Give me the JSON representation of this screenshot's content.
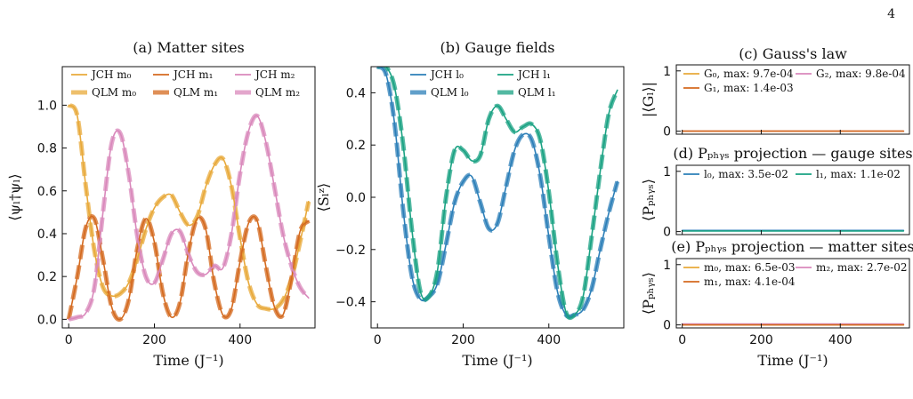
{
  "page": {
    "number": "4"
  },
  "colors": {
    "m0": "#e8a93a",
    "m1": "#d46a1f",
    "m2": "#d988bb",
    "l0": "#2c7fb8",
    "l1": "#1aa283"
  },
  "chart_data": [
    {
      "id": "a",
      "type": "line",
      "title": "(a) Matter sites",
      "xlabel": "Time (J⁻¹)",
      "ylabel": "⟨ψₗ†ψₗ⟩",
      "xlim": [
        -15,
        575
      ],
      "ylim": [
        -0.04,
        1.18
      ],
      "xticks": [
        0,
        200,
        400
      ],
      "yticks": [
        0.0,
        0.2,
        0.4,
        0.6,
        0.8,
        1.0
      ],
      "ytick_labels": [
        "0.0",
        "0.2",
        "0.4",
        "0.6",
        "0.8",
        "1.0"
      ],
      "legend": {
        "position": "top",
        "columns": 3,
        "entries": [
          "JCH m₀",
          "JCH m₁",
          "JCH m₂",
          "QLM m₀",
          "QLM m₁",
          "QLM m₂"
        ]
      },
      "x": [
        0,
        20,
        40,
        60,
        80,
        100,
        120,
        140,
        160,
        180,
        200,
        220,
        240,
        260,
        280,
        300,
        320,
        340,
        360,
        380,
        400,
        420,
        440,
        460,
        480,
        500,
        520,
        540,
        560
      ],
      "series": [
        {
          "name": "JCH m₀",
          "color": "#e8a93a",
          "style": "solid",
          "values": [
            1.0,
            0.95,
            0.62,
            0.32,
            0.15,
            0.11,
            0.12,
            0.17,
            0.28,
            0.42,
            0.52,
            0.57,
            0.58,
            0.5,
            0.44,
            0.48,
            0.62,
            0.72,
            0.75,
            0.62,
            0.38,
            0.17,
            0.07,
            0.05,
            0.05,
            0.09,
            0.19,
            0.36,
            0.55
          ]
        },
        {
          "name": "JCH m₁",
          "color": "#d46a1f",
          "style": "solid",
          "values": [
            0.0,
            0.2,
            0.43,
            0.47,
            0.28,
            0.06,
            0.0,
            0.09,
            0.33,
            0.47,
            0.36,
            0.12,
            0.01,
            0.08,
            0.32,
            0.47,
            0.42,
            0.17,
            0.02,
            0.05,
            0.27,
            0.45,
            0.46,
            0.25,
            0.06,
            0.02,
            0.19,
            0.41,
            0.46
          ]
        },
        {
          "name": "JCH m₂",
          "color": "#d988bb",
          "style": "solid",
          "values": [
            0.0,
            0.01,
            0.03,
            0.15,
            0.5,
            0.82,
            0.87,
            0.68,
            0.39,
            0.2,
            0.17,
            0.28,
            0.4,
            0.41,
            0.3,
            0.22,
            0.21,
            0.25,
            0.24,
            0.4,
            0.68,
            0.88,
            0.95,
            0.83,
            0.62,
            0.4,
            0.25,
            0.15,
            0.1
          ]
        },
        {
          "name": "QLM m₀",
          "color": "#e8a93a",
          "style": "dashed",
          "values": [
            1.0,
            0.95,
            0.62,
            0.32,
            0.15,
            0.11,
            0.12,
            0.17,
            0.28,
            0.42,
            0.52,
            0.57,
            0.58,
            0.5,
            0.44,
            0.48,
            0.62,
            0.72,
            0.75,
            0.62,
            0.38,
            0.17,
            0.07,
            0.05,
            0.05,
            0.09,
            0.19,
            0.36,
            0.55
          ]
        },
        {
          "name": "QLM m₁",
          "color": "#d46a1f",
          "style": "dashed",
          "values": [
            0.0,
            0.2,
            0.43,
            0.47,
            0.28,
            0.06,
            0.0,
            0.09,
            0.33,
            0.47,
            0.36,
            0.12,
            0.01,
            0.08,
            0.32,
            0.47,
            0.42,
            0.17,
            0.02,
            0.05,
            0.27,
            0.45,
            0.46,
            0.25,
            0.06,
            0.02,
            0.19,
            0.41,
            0.46
          ]
        },
        {
          "name": "QLM m₂",
          "color": "#d988bb",
          "style": "dashed",
          "values": [
            0.0,
            0.01,
            0.03,
            0.15,
            0.5,
            0.82,
            0.87,
            0.68,
            0.39,
            0.2,
            0.17,
            0.28,
            0.4,
            0.41,
            0.3,
            0.22,
            0.21,
            0.25,
            0.24,
            0.4,
            0.68,
            0.88,
            0.95,
            0.83,
            0.62,
            0.4,
            0.25,
            0.15,
            0.1
          ]
        }
      ]
    },
    {
      "id": "b",
      "type": "line",
      "title": "(b) Gauge fields",
      "xlabel": "Time (J⁻¹)",
      "ylabel": "⟨Sₗᶻ⟩",
      "xlim": [
        -15,
        575
      ],
      "ylim": [
        -0.5,
        0.5
      ],
      "xticks": [
        0,
        200,
        400
      ],
      "yticks": [
        -0.4,
        -0.2,
        0.0,
        0.2,
        0.4
      ],
      "ytick_labels": [
        "−0.4",
        "−0.2",
        "0.0",
        "0.2",
        "0.4"
      ],
      "legend": {
        "position": "top",
        "columns": 2,
        "entries": [
          "JCH l₀",
          "JCH l₁",
          "QLM l₀",
          "QLM l₁"
        ]
      },
      "x": [
        0,
        20,
        40,
        60,
        80,
        100,
        120,
        140,
        160,
        180,
        200,
        220,
        240,
        260,
        280,
        300,
        320,
        340,
        360,
        380,
        400,
        420,
        440,
        460,
        480,
        500,
        520,
        540,
        560
      ],
      "series": [
        {
          "name": "JCH l₀",
          "color": "#2c7fb8",
          "style": "solid",
          "values": [
            0.5,
            0.47,
            0.28,
            -0.05,
            -0.3,
            -0.39,
            -0.38,
            -0.33,
            -0.18,
            -0.02,
            0.06,
            0.08,
            -0.02,
            -0.12,
            -0.1,
            0.04,
            0.18,
            0.24,
            0.22,
            0.08,
            -0.15,
            -0.36,
            -0.45,
            -0.45,
            -0.43,
            -0.35,
            -0.2,
            -0.06,
            0.06
          ]
        },
        {
          "name": "JCH l₁",
          "color": "#1aa283",
          "style": "solid",
          "values": [
            0.5,
            0.5,
            0.42,
            0.2,
            -0.12,
            -0.36,
            -0.38,
            -0.28,
            0.0,
            0.18,
            0.18,
            0.14,
            0.16,
            0.3,
            0.35,
            0.3,
            0.25,
            0.27,
            0.28,
            0.22,
            0.02,
            -0.25,
            -0.44,
            -0.45,
            -0.38,
            -0.15,
            0.1,
            0.32,
            0.41
          ]
        },
        {
          "name": "QLM l₀",
          "color": "#2c7fb8",
          "style": "dashed",
          "values": [
            0.5,
            0.47,
            0.28,
            -0.05,
            -0.3,
            -0.39,
            -0.38,
            -0.33,
            -0.18,
            -0.02,
            0.06,
            0.08,
            -0.02,
            -0.12,
            -0.1,
            0.04,
            0.18,
            0.24,
            0.22,
            0.08,
            -0.15,
            -0.36,
            -0.45,
            -0.45,
            -0.43,
            -0.35,
            -0.2,
            -0.06,
            0.06
          ]
        },
        {
          "name": "QLM l₁",
          "color": "#1aa283",
          "style": "dashed",
          "values": [
            0.5,
            0.5,
            0.42,
            0.2,
            -0.12,
            -0.36,
            -0.38,
            -0.28,
            0.0,
            0.18,
            0.18,
            0.14,
            0.16,
            0.3,
            0.35,
            0.3,
            0.25,
            0.27,
            0.28,
            0.22,
            0.02,
            -0.25,
            -0.44,
            -0.45,
            -0.38,
            -0.15,
            0.1,
            0.32,
            0.41
          ]
        }
      ]
    },
    {
      "id": "c",
      "type": "line",
      "title": "(c) Gauss's law",
      "xlabel": "",
      "ylabel": "|⟨Gₗ⟩|",
      "xlim": [
        -15,
        575
      ],
      "ylim": [
        -0.05,
        1.1
      ],
      "xticks": [
        0,
        200,
        400
      ],
      "xtick_labels_visible": false,
      "yticks": [
        0,
        1
      ],
      "ytick_labels": [
        "0",
        "1"
      ],
      "legend": {
        "position": "top",
        "columns": 2,
        "entries": [
          "G₀, max: 9.7e-04",
          "G₂, max: 9.8e-04",
          "G₁, max: 1.4e-03"
        ]
      },
      "x": [
        0,
        560
      ],
      "series": [
        {
          "name": "G₀, max: 9.7e-04",
          "color": "#e8a93a",
          "style": "solid",
          "values": [
            0.0,
            0.0
          ]
        },
        {
          "name": "G₂, max: 9.8e-04",
          "color": "#d988bb",
          "style": "solid",
          "values": [
            0.0,
            0.0
          ]
        },
        {
          "name": "G₁, max: 1.4e-03",
          "color": "#d46a1f",
          "style": "solid",
          "values": [
            0.0,
            0.0
          ]
        }
      ]
    },
    {
      "id": "d",
      "type": "line",
      "title": "(d) Pₚₕᵧₛ projection — gauge sites",
      "xlabel": "",
      "ylabel": "⟨Pₚₕᵧₛ⟩",
      "xlim": [
        -15,
        575
      ],
      "ylim": [
        -0.05,
        1.1
      ],
      "xticks": [
        0,
        200,
        400
      ],
      "xtick_labels_visible": false,
      "yticks": [
        0,
        1
      ],
      "ytick_labels": [
        "0",
        "1"
      ],
      "legend": {
        "position": "top",
        "columns": 2,
        "entries": [
          "l₀, max: 3.5e-02",
          "l₁, max: 1.1e-02"
        ]
      },
      "x": [
        0,
        560
      ],
      "series": [
        {
          "name": "l₀, max: 3.5e-02",
          "color": "#2c7fb8",
          "style": "solid",
          "values": [
            0.02,
            0.02
          ]
        },
        {
          "name": "l₁, max: 1.1e-02",
          "color": "#1aa283",
          "style": "solid",
          "values": [
            0.01,
            0.01
          ]
        }
      ]
    },
    {
      "id": "e",
      "type": "line",
      "title": "(e) Pₚₕᵧₛ projection — matter sites",
      "xlabel": "Time (J⁻¹)",
      "ylabel": "⟨Pₚₕᵧₛ⟩",
      "xlim": [
        -15,
        575
      ],
      "ylim": [
        -0.05,
        1.1
      ],
      "xticks": [
        0,
        200,
        400
      ],
      "yticks": [
        0,
        1
      ],
      "ytick_labels": [
        "0",
        "1"
      ],
      "legend": {
        "position": "top",
        "columns": 2,
        "entries": [
          "m₀, max: 6.5e-03",
          "m₂, max: 2.7e-02",
          "m₁, max: 4.1e-04"
        ]
      },
      "x": [
        0,
        560
      ],
      "series": [
        {
          "name": "m₀, max: 6.5e-03",
          "color": "#e8a93a",
          "style": "solid",
          "values": [
            0.0,
            0.0
          ]
        },
        {
          "name": "m₂, max: 2.7e-02",
          "color": "#d988bb",
          "style": "solid",
          "values": [
            0.015,
            0.015
          ]
        },
        {
          "name": "m₁, max: 4.1e-04",
          "color": "#d46a1f",
          "style": "solid",
          "values": [
            0.0,
            0.0
          ]
        }
      ]
    }
  ]
}
